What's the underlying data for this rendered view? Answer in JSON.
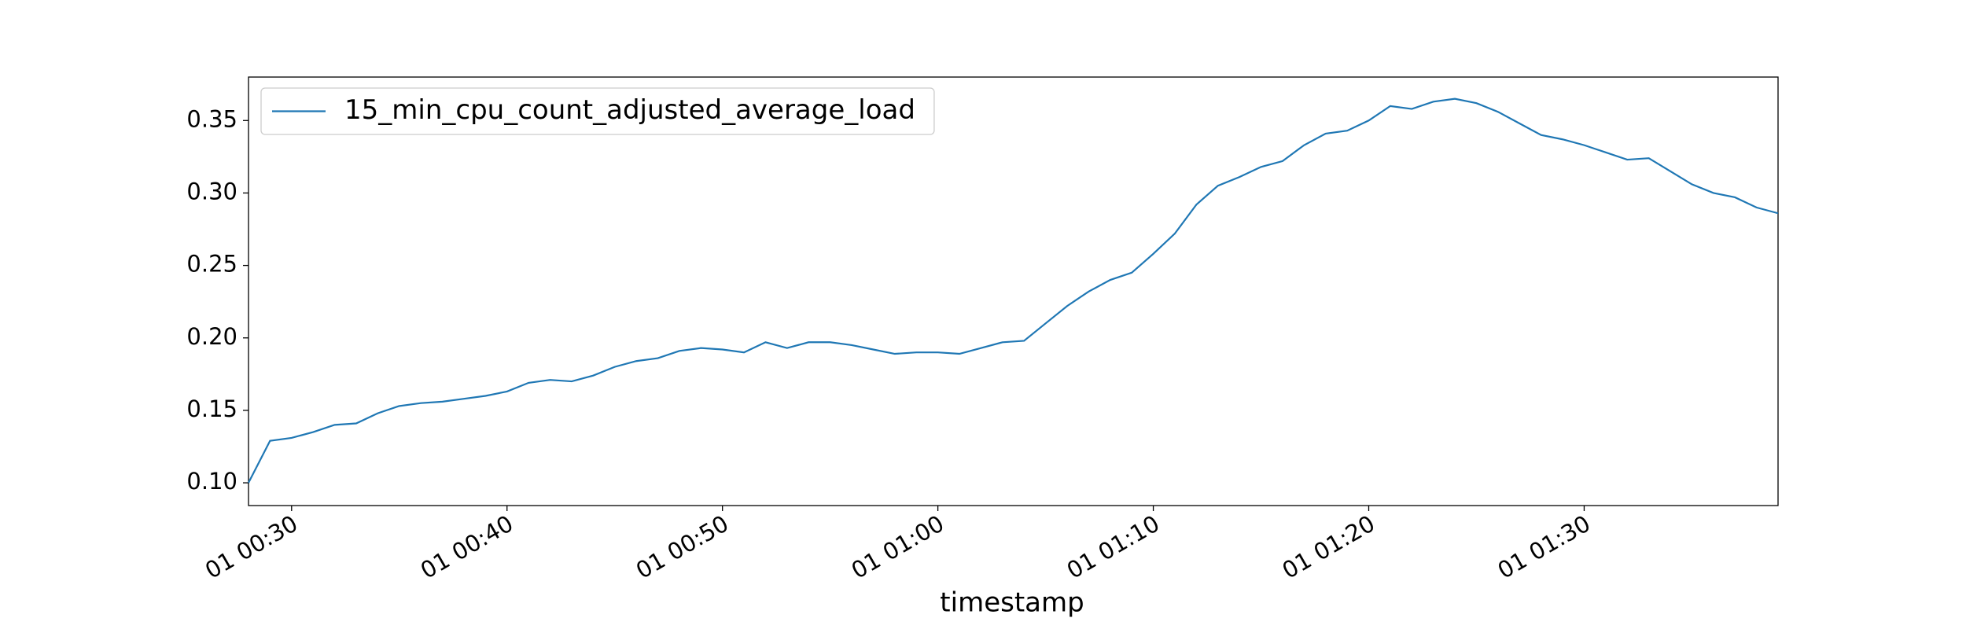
{
  "chart_data": {
    "type": "line",
    "xlabel": "timestamp",
    "x": [
      "01 00:28",
      "01 00:29",
      "01 00:30",
      "01 00:31",
      "01 00:32",
      "01 00:33",
      "01 00:34",
      "01 00:35",
      "01 00:36",
      "01 00:37",
      "01 00:38",
      "01 00:39",
      "01 00:40",
      "01 00:41",
      "01 00:42",
      "01 00:43",
      "01 00:44",
      "01 00:45",
      "01 00:46",
      "01 00:47",
      "01 00:48",
      "01 00:49",
      "01 00:50",
      "01 00:51",
      "01 00:52",
      "01 00:53",
      "01 00:54",
      "01 00:55",
      "01 00:56",
      "01 00:57",
      "01 00:58",
      "01 00:59",
      "01 01:00",
      "01 01:01",
      "01 01:02",
      "01 01:03",
      "01 01:04",
      "01 01:05",
      "01 01:06",
      "01 01:07",
      "01 01:08",
      "01 01:09",
      "01 01:10",
      "01 01:11",
      "01 01:12",
      "01 01:13",
      "01 01:14",
      "01 01:15",
      "01 01:16",
      "01 01:17",
      "01 01:18",
      "01 01:19",
      "01 01:20",
      "01 01:21",
      "01 01:22",
      "01 01:23",
      "01 01:24",
      "01 01:25",
      "01 01:26",
      "01 01:27",
      "01 01:28",
      "01 01:29",
      "01 01:30",
      "01 01:31",
      "01 01:32",
      "01 01:33",
      "01 01:34",
      "01 01:35",
      "01 01:36",
      "01 01:37",
      "01 01:38",
      "01 01:39"
    ],
    "series": [
      {
        "name": "15_min_cpu_count_adjusted_average_load",
        "color": "#1f77b4",
        "values": [
          0.1,
          0.129,
          0.131,
          0.135,
          0.14,
          0.141,
          0.148,
          0.153,
          0.155,
          0.156,
          0.158,
          0.16,
          0.163,
          0.169,
          0.171,
          0.17,
          0.174,
          0.18,
          0.184,
          0.186,
          0.191,
          0.193,
          0.192,
          0.19,
          0.197,
          0.193,
          0.197,
          0.197,
          0.195,
          0.192,
          0.189,
          0.19,
          0.19,
          0.189,
          0.193,
          0.197,
          0.198,
          0.21,
          0.222,
          0.232,
          0.24,
          0.245,
          0.258,
          0.272,
          0.292,
          0.305,
          0.311,
          0.318,
          0.322,
          0.333,
          0.341,
          0.343,
          0.35,
          0.36,
          0.358,
          0.363,
          0.365,
          0.362,
          0.356,
          0.348,
          0.34,
          0.337,
          0.333,
          0.328,
          0.323,
          0.324,
          0.315,
          0.306,
          0.3,
          0.297,
          0.29,
          0.286
        ]
      }
    ],
    "xlim": [
      "01 00:28",
      "01 01:39"
    ],
    "xticks": [
      "01 00:30",
      "01 00:40",
      "01 00:50",
      "01 01:00",
      "01 01:10",
      "01 01:20",
      "01 01:30"
    ],
    "ylim": [
      0.0843,
      0.38
    ],
    "yticks": [
      {
        "value": 0.1,
        "label": "0.10"
      },
      {
        "value": 0.15,
        "label": "0.15"
      },
      {
        "value": 0.2,
        "label": "0.20"
      },
      {
        "value": 0.25,
        "label": "0.25"
      },
      {
        "value": 0.3,
        "label": "0.30"
      },
      {
        "value": 0.35,
        "label": "0.35"
      }
    ],
    "legend": "upper left"
  }
}
